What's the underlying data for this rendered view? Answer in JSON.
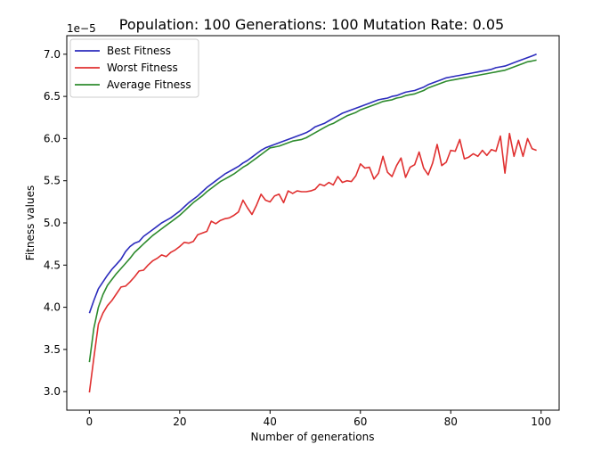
{
  "chart_data": {
    "type": "line",
    "title": "Population: 100 Generations: 100 Mutation Rate: 0.05",
    "xlabel": "Number of generations",
    "ylabel": "Fitness values",
    "y_offset_label": "1e−5",
    "xlim": [
      -5,
      104
    ],
    "ylim": [
      2.78,
      7.22
    ],
    "xticks": [
      0,
      20,
      40,
      60,
      80,
      100
    ],
    "xtick_labels": [
      "0",
      "20",
      "40",
      "60",
      "80",
      "100"
    ],
    "yticks": [
      3.0,
      3.5,
      4.0,
      4.5,
      5.0,
      5.5,
      6.0,
      6.5,
      7.0
    ],
    "ytick_labels": [
      "3.0",
      "3.5",
      "4.0",
      "4.5",
      "5.0",
      "5.5",
      "6.0",
      "6.5",
      "7.0"
    ],
    "grid": false,
    "legend_position": "top-left",
    "x": [
      0,
      1,
      2,
      3,
      4,
      5,
      6,
      7,
      8,
      9,
      10,
      11,
      12,
      13,
      14,
      15,
      16,
      17,
      18,
      19,
      20,
      21,
      22,
      23,
      24,
      25,
      26,
      27,
      28,
      29,
      30,
      31,
      32,
      33,
      34,
      35,
      36,
      37,
      38,
      39,
      40,
      41,
      42,
      43,
      44,
      45,
      46,
      47,
      48,
      49,
      50,
      51,
      52,
      53,
      54,
      55,
      56,
      57,
      58,
      59,
      60,
      61,
      62,
      63,
      64,
      65,
      66,
      67,
      68,
      69,
      70,
      71,
      72,
      73,
      74,
      75,
      76,
      77,
      78,
      79,
      80,
      81,
      82,
      83,
      84,
      85,
      86,
      87,
      88,
      89,
      90,
      91,
      92,
      93,
      94,
      95,
      96,
      97,
      98,
      99
    ],
    "series": [
      {
        "name": "Best Fitness",
        "color": "#2c2cbd",
        "values": [
          3.93,
          4.08,
          4.22,
          4.3,
          4.38,
          4.45,
          4.51,
          4.57,
          4.66,
          4.72,
          4.76,
          4.78,
          4.84,
          4.88,
          4.92,
          4.96,
          5.0,
          5.03,
          5.06,
          5.1,
          5.14,
          5.19,
          5.24,
          5.28,
          5.32,
          5.37,
          5.42,
          5.46,
          5.5,
          5.54,
          5.58,
          5.61,
          5.64,
          5.67,
          5.71,
          5.74,
          5.78,
          5.82,
          5.86,
          5.89,
          5.91,
          5.93,
          5.95,
          5.97,
          5.99,
          6.01,
          6.03,
          6.05,
          6.07,
          6.1,
          6.14,
          6.16,
          6.18,
          6.21,
          6.24,
          6.27,
          6.3,
          6.32,
          6.34,
          6.36,
          6.38,
          6.4,
          6.42,
          6.44,
          6.46,
          6.47,
          6.48,
          6.5,
          6.51,
          6.53,
          6.55,
          6.56,
          6.57,
          6.59,
          6.61,
          6.64,
          6.66,
          6.68,
          6.7,
          6.72,
          6.73,
          6.74,
          6.75,
          6.76,
          6.77,
          6.78,
          6.79,
          6.8,
          6.81,
          6.82,
          6.84,
          6.85,
          6.86,
          6.88,
          6.9,
          6.92,
          6.94,
          6.96,
          6.98,
          7.0
        ]
      },
      {
        "name": "Worst Fitness",
        "color": "#e03030",
        "values": [
          2.99,
          3.4,
          3.8,
          3.93,
          4.02,
          4.08,
          4.16,
          4.24,
          4.25,
          4.3,
          4.36,
          4.43,
          4.44,
          4.5,
          4.55,
          4.58,
          4.62,
          4.6,
          4.65,
          4.68,
          4.72,
          4.77,
          4.76,
          4.78,
          4.86,
          4.88,
          4.9,
          5.02,
          4.99,
          5.03,
          5.05,
          5.06,
          5.09,
          5.13,
          5.27,
          5.18,
          5.1,
          5.21,
          5.34,
          5.27,
          5.25,
          5.32,
          5.34,
          5.24,
          5.38,
          5.35,
          5.38,
          5.37,
          5.37,
          5.38,
          5.4,
          5.46,
          5.44,
          5.48,
          5.45,
          5.55,
          5.48,
          5.5,
          5.49,
          5.56,
          5.7,
          5.65,
          5.66,
          5.52,
          5.59,
          5.79,
          5.6,
          5.55,
          5.68,
          5.77,
          5.54,
          5.66,
          5.69,
          5.84,
          5.65,
          5.57,
          5.71,
          5.93,
          5.68,
          5.72,
          5.86,
          5.85,
          5.99,
          5.76,
          5.78,
          5.82,
          5.79,
          5.86,
          5.8,
          5.87,
          5.85,
          6.03,
          5.59,
          6.06,
          5.79,
          5.98,
          5.79,
          6.0,
          5.88,
          5.86
        ]
      },
      {
        "name": "Average Fitness",
        "color": "#2e8b2e",
        "values": [
          3.35,
          3.75,
          4.0,
          4.15,
          4.26,
          4.33,
          4.4,
          4.46,
          4.52,
          4.58,
          4.65,
          4.7,
          4.75,
          4.8,
          4.85,
          4.89,
          4.93,
          4.97,
          5.01,
          5.05,
          5.09,
          5.14,
          5.19,
          5.24,
          5.28,
          5.32,
          5.37,
          5.41,
          5.45,
          5.49,
          5.52,
          5.55,
          5.58,
          5.62,
          5.66,
          5.69,
          5.73,
          5.77,
          5.81,
          5.85,
          5.89,
          5.9,
          5.91,
          5.93,
          5.95,
          5.97,
          5.98,
          5.99,
          6.01,
          6.04,
          6.07,
          6.1,
          6.13,
          6.16,
          6.18,
          6.21,
          6.24,
          6.27,
          6.29,
          6.31,
          6.34,
          6.36,
          6.38,
          6.4,
          6.42,
          6.44,
          6.45,
          6.46,
          6.48,
          6.49,
          6.51,
          6.52,
          6.53,
          6.55,
          6.57,
          6.6,
          6.62,
          6.64,
          6.66,
          6.68,
          6.69,
          6.7,
          6.71,
          6.72,
          6.73,
          6.74,
          6.75,
          6.76,
          6.77,
          6.78,
          6.79,
          6.8,
          6.81,
          6.83,
          6.85,
          6.87,
          6.89,
          6.91,
          6.92,
          6.93
        ]
      }
    ]
  }
}
